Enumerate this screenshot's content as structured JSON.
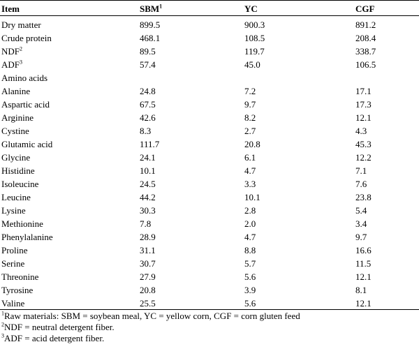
{
  "header": {
    "item": "Item",
    "sbm": "SBM",
    "sbm_sup": "1",
    "yc": "YC",
    "cgf": "CGF"
  },
  "rows": [
    {
      "item": "Dry matter",
      "sup": "",
      "sbm": "899.5",
      "yc": "900.3",
      "cgf": "891.2"
    },
    {
      "item": "Crude protein",
      "sup": "",
      "sbm": "468.1",
      "yc": "108.5",
      "cgf": "208.4"
    },
    {
      "item": "NDF",
      "sup": "2",
      "sbm": "89.5",
      "yc": "119.7",
      "cgf": "338.7"
    },
    {
      "item": "ADF",
      "sup": "3",
      "sbm": "57.4",
      "yc": "45.0",
      "cgf": "106.5"
    },
    {
      "item": "Amino acids",
      "sup": "",
      "sbm": "",
      "yc": "",
      "cgf": ""
    },
    {
      "item": "Alanine",
      "sup": "",
      "sbm": "24.8",
      "yc": "7.2",
      "cgf": "17.1"
    },
    {
      "item": "Aspartic acid",
      "sup": "",
      "sbm": "67.5",
      "yc": "9.7",
      "cgf": "17.3"
    },
    {
      "item": "Arginine",
      "sup": "",
      "sbm": "42.6",
      "yc": "8.2",
      "cgf": "12.1"
    },
    {
      "item": "Cystine",
      "sup": "",
      "sbm": "8.3",
      "yc": "2.7",
      "cgf": "4.3"
    },
    {
      "item": "Glutamic acid",
      "sup": "",
      "sbm": "111.7",
      "yc": "20.8",
      "cgf": "45.3"
    },
    {
      "item": "Glycine",
      "sup": "",
      "sbm": "24.1",
      "yc": "6.1",
      "cgf": "12.2"
    },
    {
      "item": "Histidine",
      "sup": "",
      "sbm": "10.1",
      "yc": "4.7",
      "cgf": "7.1"
    },
    {
      "item": "Isoleucine",
      "sup": "",
      "sbm": "24.5",
      "yc": "3.3",
      "cgf": "7.6"
    },
    {
      "item": "Leucine",
      "sup": "",
      "sbm": "44.2",
      "yc": "10.1",
      "cgf": "23.8"
    },
    {
      "item": "Lysine",
      "sup": "",
      "sbm": "30.3",
      "yc": "2.8",
      "cgf": "5.4"
    },
    {
      "item": "Methionine",
      "sup": "",
      "sbm": "7.8",
      "yc": "2.0",
      "cgf": "3.4"
    },
    {
      "item": "Phenylalanine",
      "sup": "",
      "sbm": "28.9",
      "yc": "4.7",
      "cgf": "9.7"
    },
    {
      "item": "Proline",
      "sup": "",
      "sbm": "31.1",
      "yc": "8.8",
      "cgf": "16.6"
    },
    {
      "item": "Serine",
      "sup": "",
      "sbm": "30.7",
      "yc": "5.7",
      "cgf": "11.5"
    },
    {
      "item": "Threonine",
      "sup": "",
      "sbm": "27.9",
      "yc": "5.6",
      "cgf": "12.1"
    },
    {
      "item": "Tyrosine",
      "sup": "",
      "sbm": "20.8",
      "yc": "3.9",
      "cgf": "8.1"
    },
    {
      "item": "Valine",
      "sup": "",
      "sbm": "25.5",
      "yc": "5.6",
      "cgf": "12.1"
    }
  ],
  "footnotes": [
    {
      "sup": "1",
      "text": "Raw materials: SBM = soybean meal, YC = yellow corn, CGF = corn gluten feed"
    },
    {
      "sup": "2",
      "text": "NDF = neutral detergent fiber."
    },
    {
      "sup": "3",
      "text": "ADF = acid detergent fiber."
    }
  ]
}
